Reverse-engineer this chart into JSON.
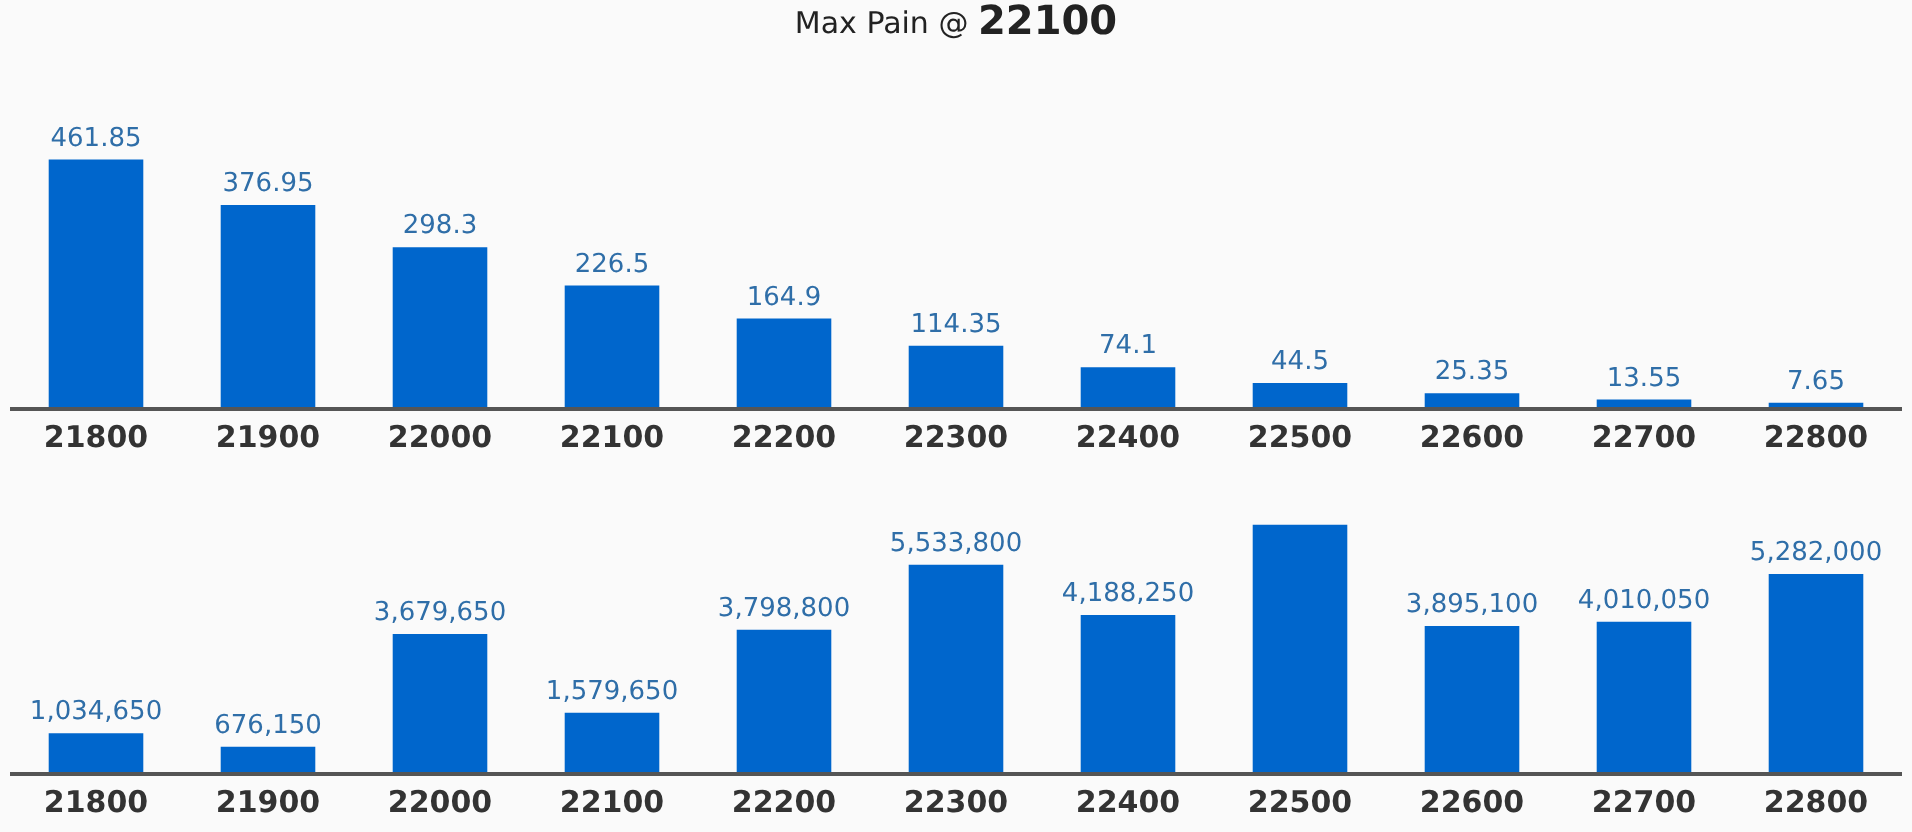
{
  "chart_data": [
    {
      "type": "bar",
      "title": "Max Pain @ 22100",
      "categories": [
        "21800",
        "21900",
        "22000",
        "22100",
        "22200",
        "22300",
        "22400",
        "22500",
        "22600",
        "22700",
        "22800"
      ],
      "values": [
        461.85,
        376.95,
        298.3,
        226.5,
        164.9,
        114.35,
        74.1,
        44.5,
        25.35,
        13.55,
        7.65
      ],
      "color": "#0066cc",
      "data_labels": true
    },
    {
      "type": "bar",
      "categories": [
        "21800",
        "21900",
        "22000",
        "22100",
        "22200",
        "22300",
        "22400",
        "22500",
        "22600",
        "22700",
        "22800"
      ],
      "values": [
        1034650,
        676150,
        3679650,
        1579650,
        3798800,
        5533800,
        4188250,
        6600000,
        3895100,
        4010050,
        5282000
      ],
      "color": "#0066cc",
      "value_labels": [
        "1,034,650",
        "676,150",
        "3,679,650",
        "1,579,650",
        "3,798,800",
        "5,533,800",
        "4,188,250",
        null,
        "3,895,100",
        "4,010,050",
        "5,282,000"
      ]
    }
  ]
}
